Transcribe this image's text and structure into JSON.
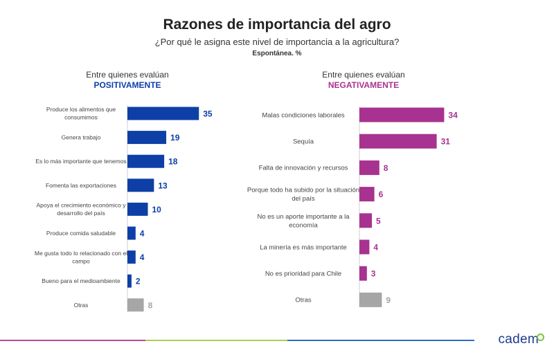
{
  "title": "Razones de importancia del agro",
  "subtitle": "¿Por qué le asigna este nivel de importancia a la agricultura?",
  "note": "Espontánea. %",
  "logo_text": "cadem",
  "colors": {
    "positive": "#0d3fa6",
    "negative": "#a8328f",
    "other": "#a6a6a6"
  },
  "chart_data": [
    {
      "type": "bar",
      "orientation": "horizontal",
      "header_line1": "Entre quienes evalúan",
      "header_line2": "POSITIVAMENTE",
      "categories": [
        "Produce los alimentos que consumimos",
        "Genera trabajo",
        "Es lo más importante que tenemos",
        "Fomenta las exportaciones",
        "Apoya el crecimiento económico y desarrollo del país",
        "Produce comida saludable",
        "Me gusta todo lo relacionado con el campo",
        "Bueno para el medioambiente",
        "Otras"
      ],
      "values": [
        35,
        19,
        18,
        13,
        10,
        4,
        4,
        2,
        8
      ],
      "labels_lines": [
        [
          "Produce los alimentos que",
          "consumimos"
        ],
        [
          "Genera trabajo"
        ],
        [
          "Es lo más importante que tenemos"
        ],
        [
          "Fomenta las exportaciones"
        ],
        [
          "Apoya el crecimiento económico y",
          "desarrollo del país"
        ],
        [
          "Produce comida saludable"
        ],
        [
          "Me gusta todo lo relacionado con el",
          "campo"
        ],
        [
          "Bueno para el medioambiente"
        ],
        [
          "Otras"
        ]
      ],
      "data_labels": true
    },
    {
      "type": "bar",
      "orientation": "horizontal",
      "header_line1": "Entre quienes evalúan",
      "header_line2": "NEGATIVAMENTE",
      "categories": [
        "Malas condiciones laborales",
        "Sequía",
        "Falta de innovación y recursos",
        "Porque todo ha subido por la situación del país",
        "No es un aporte importante a la economía",
        "La minería es más importante",
        "No es prioridad para Chile",
        "Otras"
      ],
      "values": [
        34,
        31,
        8,
        6,
        5,
        4,
        3,
        9
      ],
      "labels_lines": [
        [
          "Malas condiciones laborales"
        ],
        [
          "Sequía"
        ],
        [
          "Falta de innovación y recursos"
        ],
        [
          "Porque todo ha subido por la situación",
          "del país"
        ],
        [
          "No es un aporte importante a la",
          "economía"
        ],
        [
          "La minería es más importante"
        ],
        [
          "No es prioridad para Chile"
        ],
        [
          "Otras"
        ]
      ],
      "data_labels": true
    }
  ]
}
